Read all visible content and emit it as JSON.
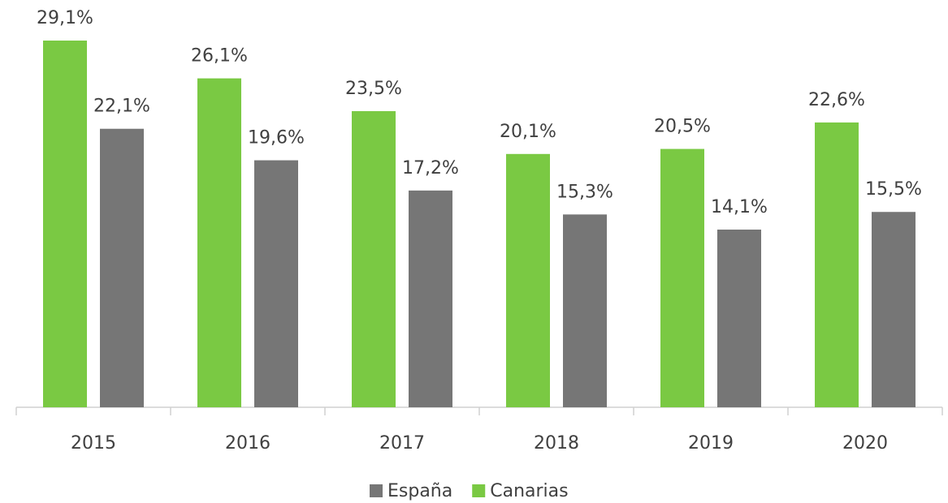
{
  "chart_data": {
    "type": "bar",
    "categories": [
      "2015",
      "2016",
      "2017",
      "2018",
      "2019",
      "2020"
    ],
    "series": [
      {
        "name": "España",
        "color": "#767676",
        "values": [
          22.1,
          19.6,
          17.2,
          15.3,
          14.1,
          15.5
        ],
        "value_labels": [
          "22,1%",
          "19,6%",
          "17,2%",
          "15,3%",
          "14,1%",
          "15,5%"
        ]
      },
      {
        "name": "Canarias",
        "color": "#7ac943",
        "values": [
          29.1,
          26.1,
          23.5,
          20.1,
          20.5,
          22.6
        ],
        "value_labels": [
          "29,1%",
          "26,1%",
          "23,5%",
          "20,1%",
          "20,5%",
          "22,6%"
        ]
      }
    ],
    "legend": "bottom"
  }
}
